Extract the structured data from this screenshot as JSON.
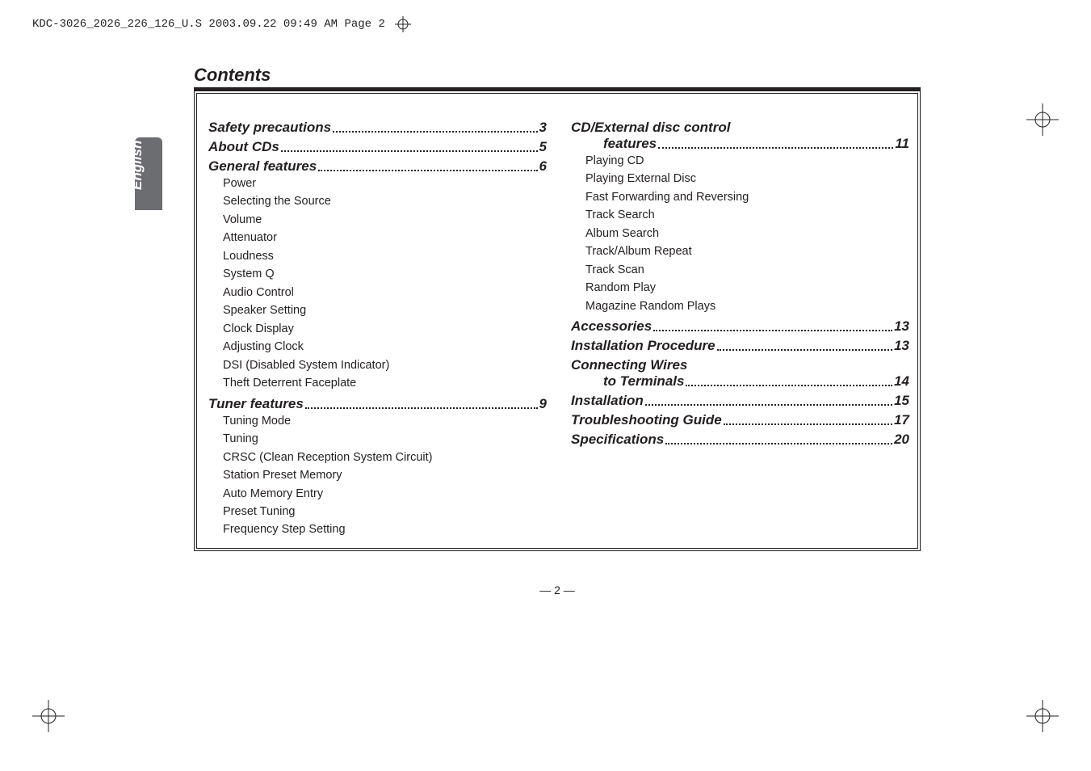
{
  "print_header": "KDC-3026_2026_226_126_U.S  2003.09.22  09:49 AM  Page 2",
  "lang_tab": "English",
  "title": "Contents",
  "col1": {
    "s1": {
      "label": "Safety precautions",
      "pg": "3"
    },
    "s2": {
      "label": "About CDs",
      "pg": "5"
    },
    "s3": {
      "label": "General features",
      "pg": "6",
      "items": [
        "Power",
        "Selecting the Source",
        "Volume",
        "Attenuator",
        "Loudness",
        "System Q",
        "Audio Control",
        "Speaker Setting",
        "Clock Display",
        "Adjusting Clock",
        "DSI (Disabled System Indicator)",
        "Theft Deterrent Faceplate"
      ]
    },
    "s4": {
      "label": "Tuner features",
      "pg": "9",
      "items": [
        "Tuning Mode",
        "Tuning",
        "CRSC (Clean Reception System Circuit)",
        "Station Preset Memory",
        "Auto Memory Entry",
        "Preset Tuning",
        "Frequency Step Setting"
      ]
    }
  },
  "col2": {
    "s1": {
      "label1": "CD/External disc control",
      "label2": "features",
      "pg": "11",
      "items": [
        "Playing CD",
        "Playing External Disc",
        "Fast Forwarding and Reversing",
        "Track Search",
        "Album Search",
        "Track/Album Repeat",
        "Track Scan",
        "Random Play",
        "Magazine Random Plays"
      ]
    },
    "s2": {
      "label": "Accessories",
      "pg": "13"
    },
    "s3": {
      "label": "Installation Procedure",
      "pg": "13"
    },
    "s4": {
      "label1": "Connecting Wires",
      "label2": "to Terminals",
      "pg": "14"
    },
    "s5": {
      "label": "Installation",
      "pg": "15"
    },
    "s6": {
      "label": "Troubleshooting Guide",
      "pg": "17"
    },
    "s7": {
      "label": "Specifications",
      "pg": "20"
    }
  },
  "footer": "— 2 —"
}
